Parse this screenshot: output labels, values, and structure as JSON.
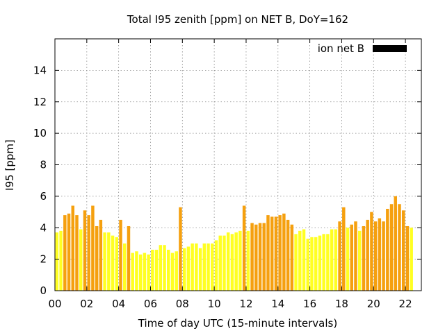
{
  "chart_data": {
    "type": "bar",
    "title": "Total I95 zenith [ppm] on NET B, DoY=162",
    "xlabel": "Time of day UTC (15-minute intervals)",
    "ylabel": "I95 [ppm]",
    "xlim": [
      0,
      23
    ],
    "ylim": [
      0,
      16
    ],
    "xticks": [
      "00",
      "02",
      "04",
      "06",
      "08",
      "10",
      "12",
      "14",
      "16",
      "18",
      "20",
      "22"
    ],
    "xtick_values": [
      0,
      2,
      4,
      6,
      8,
      10,
      12,
      14,
      16,
      18,
      20,
      22
    ],
    "yticks": [
      "0",
      "2",
      "4",
      "6",
      "8",
      "10",
      "12",
      "14"
    ],
    "ytick_values": [
      0,
      2,
      4,
      6,
      8,
      10,
      12,
      14
    ],
    "grid": true,
    "legend": {
      "label": "ion net B",
      "color": "#000000",
      "placement": "top-right"
    },
    "colors": {
      "low": "#ffff22",
      "high": "#f5a00f",
      "grid": "#888888"
    },
    "bar_interval_hours": 0.25,
    "series": [
      {
        "values": [
          3.7,
          3.8,
          4.8,
          4.9,
          5.4,
          4.8,
          3.9,
          5.1,
          4.8,
          5.4,
          4.1,
          4.5,
          3.7,
          3.7,
          3.5,
          3.4,
          4.5,
          3.0,
          4.1,
          2.4,
          2.5,
          2.3,
          2.4,
          2.3,
          2.6,
          2.6,
          2.9,
          2.9,
          2.6,
          2.4,
          2.5,
          5.3,
          2.7,
          2.8,
          3.0,
          3.0,
          2.7,
          3.0,
          3.0,
          3.0,
          3.2,
          3.5,
          3.5,
          3.7,
          3.6,
          3.7,
          3.8,
          5.4,
          3.8,
          4.3,
          4.2,
          4.3,
          4.3,
          4.8,
          4.7,
          4.7,
          4.8,
          4.9,
          4.5,
          4.2,
          3.6,
          3.8,
          3.9,
          3.3,
          3.4,
          3.4,
          3.5,
          3.6,
          3.6,
          3.9,
          3.9,
          4.4,
          5.3,
          4.0,
          4.2,
          4.4,
          3.8,
          4.1,
          4.5,
          5.0,
          4.4,
          4.6,
          4.4,
          5.2,
          5.5,
          6.0,
          5.5,
          5.1,
          4.1,
          4.0
        ],
        "colors": [
          "y",
          "y",
          "o",
          "o",
          "o",
          "o",
          "y",
          "o",
          "o",
          "o",
          "o",
          "o",
          "y",
          "y",
          "y",
          "y",
          "o",
          "y",
          "o",
          "y",
          "y",
          "y",
          "y",
          "y",
          "y",
          "y",
          "y",
          "y",
          "y",
          "y",
          "y",
          "o",
          "y",
          "y",
          "y",
          "y",
          "y",
          "y",
          "y",
          "y",
          "y",
          "y",
          "y",
          "y",
          "y",
          "y",
          "y",
          "o",
          "y",
          "o",
          "o",
          "o",
          "o",
          "o",
          "o",
          "o",
          "o",
          "o",
          "o",
          "o",
          "y",
          "y",
          "y",
          "y",
          "y",
          "y",
          "y",
          "y",
          "y",
          "y",
          "y",
          "o",
          "o",
          "y",
          "o",
          "o",
          "y",
          "o",
          "o",
          "o",
          "o",
          "o",
          "o",
          "o",
          "o",
          "o",
          "o",
          "o",
          "o",
          "y"
        ]
      }
    ]
  }
}
